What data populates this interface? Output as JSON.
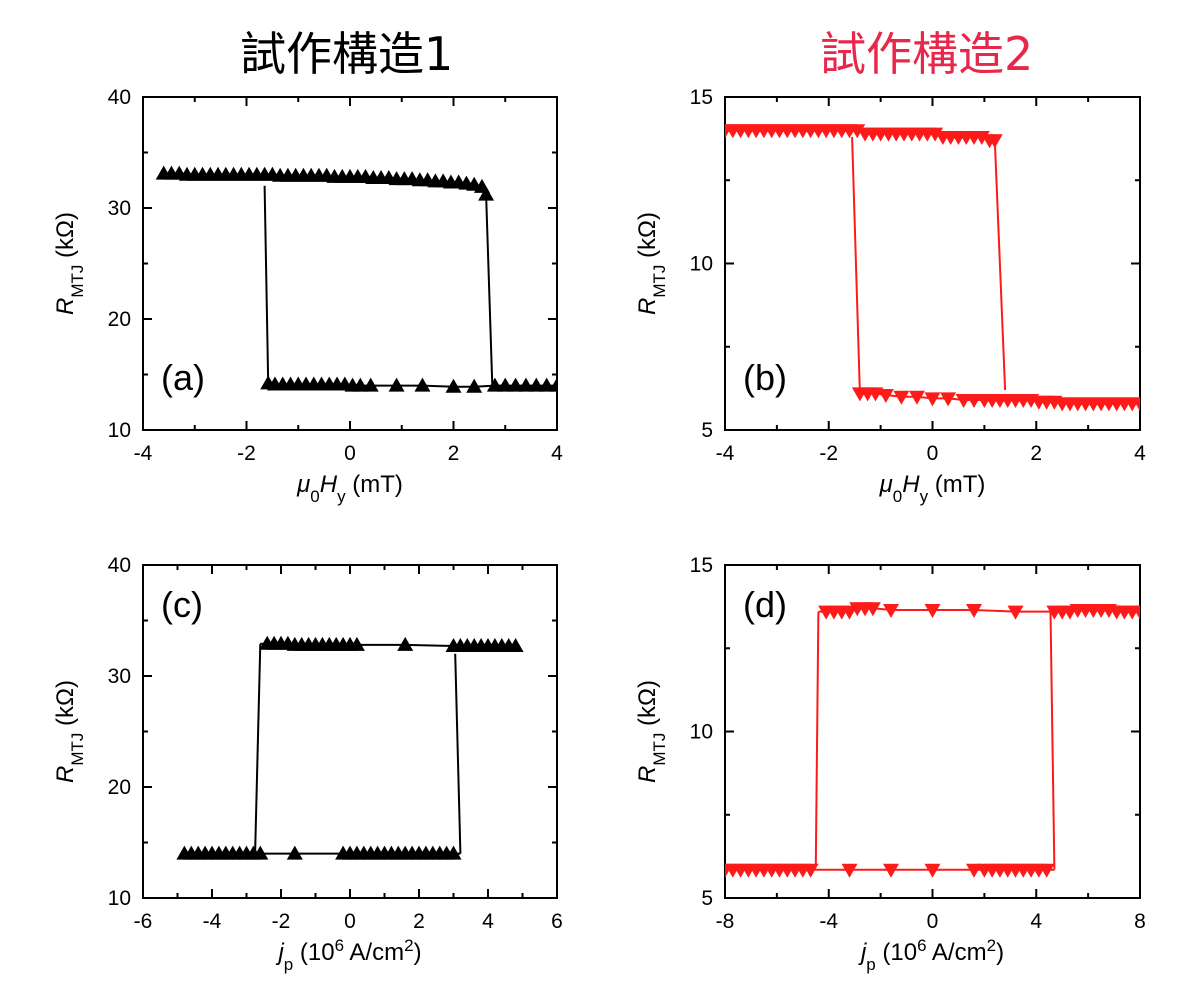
{
  "titles": {
    "left": "試作構造1",
    "right": "試作構造2"
  },
  "colors": {
    "sample1": "#000000",
    "sample2": "#ff1a1a",
    "title2": "#e8284a"
  },
  "chart_data": [
    {
      "id": "a",
      "type": "line",
      "panel_label": "(a)",
      "xlabel": "μ0Hy (mT)",
      "ylabel": "RMTJ (kΩ)",
      "xlim": [
        -4,
        4
      ],
      "ylim": [
        10,
        40
      ],
      "xticks": [
        -4,
        -2,
        0,
        2,
        4
      ],
      "yticks": [
        10,
        20,
        30,
        40
      ],
      "marker": "triangle-up",
      "color": "#000000",
      "series": [
        {
          "x": [
            -3.6,
            -3.45,
            -3.3,
            -3.15,
            -3.0,
            -2.85,
            -2.7,
            -2.55,
            -2.4,
            -2.25,
            -2.1,
            -1.95,
            -1.8,
            -1.65,
            -1.5,
            -1.35,
            -1.2,
            -1.05,
            -0.9,
            -0.75,
            -0.6,
            -0.45,
            -0.3,
            -0.15,
            0.0,
            0.15,
            0.3,
            0.45,
            0.6,
            0.75,
            0.9,
            1.05,
            1.2,
            1.35,
            1.5,
            1.65,
            1.8,
            1.95,
            2.1,
            2.25,
            2.4,
            2.55,
            2.63,
            2.75
          ],
          "y": [
            33.1,
            33.1,
            33.1,
            33.0,
            33.0,
            33.0,
            33.0,
            33.0,
            33.0,
            33.0,
            33.0,
            33.0,
            33.0,
            33.0,
            33.0,
            32.9,
            32.9,
            32.9,
            32.9,
            32.9,
            32.9,
            32.9,
            32.8,
            32.8,
            32.8,
            32.8,
            32.8,
            32.7,
            32.7,
            32.7,
            32.6,
            32.6,
            32.6,
            32.5,
            32.5,
            32.4,
            32.4,
            32.3,
            32.3,
            32.2,
            32.1,
            31.9,
            31.2,
            14.0
          ]
        },
        {
          "x": [
            4.0,
            3.8,
            3.6,
            3.4,
            3.2,
            3.0,
            2.8,
            2.4,
            2.0,
            1.4,
            0.9,
            0.4,
            0.2,
            0.05,
            -0.1,
            -0.25,
            -0.4,
            -0.55,
            -0.7,
            -0.85,
            -1.0,
            -1.15,
            -1.3,
            -1.45,
            -1.58,
            -1.65
          ],
          "y": [
            14.0,
            14.0,
            14.0,
            14.0,
            14.0,
            14.0,
            14.0,
            13.9,
            13.9,
            14.0,
            14.0,
            14.0,
            14.0,
            14.0,
            14.1,
            14.1,
            14.1,
            14.1,
            14.1,
            14.1,
            14.1,
            14.1,
            14.1,
            14.1,
            14.2,
            32.0
          ]
        }
      ]
    },
    {
      "id": "b",
      "type": "line",
      "panel_label": "(b)",
      "xlabel": "μ0Hy (mT)",
      "ylabel": "RMTJ (kΩ)",
      "xlim": [
        -4,
        4
      ],
      "ylim": [
        5,
        15
      ],
      "xticks": [
        -4,
        -2,
        0,
        2,
        4
      ],
      "yticks": [
        5,
        10,
        15
      ],
      "marker": "triangle-down",
      "color": "#ff1a1a",
      "series": [
        {
          "x": [
            -4.0,
            -3.85,
            -3.7,
            -3.55,
            -3.4,
            -3.25,
            -3.1,
            -2.95,
            -2.8,
            -2.65,
            -2.5,
            -2.35,
            -2.2,
            -2.05,
            -1.9,
            -1.75,
            -1.6,
            -1.45,
            -1.3,
            -1.15,
            -1.0,
            -0.85,
            -0.7,
            -0.55,
            -0.4,
            -0.25,
            -0.1,
            0.05,
            0.2,
            0.35,
            0.5,
            0.65,
            0.8,
            0.95,
            1.1,
            1.2,
            1.4
          ],
          "y": [
            14.0,
            14.0,
            14.0,
            14.0,
            14.0,
            14.0,
            14.0,
            14.0,
            14.0,
            14.0,
            14.0,
            14.0,
            14.0,
            14.0,
            14.0,
            14.0,
            14.0,
            14.0,
            13.9,
            13.9,
            13.9,
            13.9,
            13.9,
            13.9,
            13.9,
            13.9,
            13.9,
            13.9,
            13.8,
            13.8,
            13.8,
            13.8,
            13.8,
            13.8,
            13.7,
            13.7,
            6.2
          ]
        },
        {
          "x": [
            4.0,
            3.85,
            3.7,
            3.55,
            3.4,
            3.25,
            3.1,
            2.95,
            2.8,
            2.65,
            2.5,
            2.35,
            2.2,
            2.05,
            1.9,
            1.75,
            1.6,
            1.45,
            1.3,
            1.15,
            1.0,
            0.8,
            0.6,
            0.3,
            0.0,
            -0.3,
            -0.6,
            -0.9,
            -1.1,
            -1.25,
            -1.4,
            -1.55
          ],
          "y": [
            5.8,
            5.8,
            5.8,
            5.8,
            5.8,
            5.8,
            5.8,
            5.8,
            5.8,
            5.8,
            5.8,
            5.85,
            5.85,
            5.85,
            5.9,
            5.9,
            5.9,
            5.9,
            5.9,
            5.9,
            5.9,
            5.9,
            5.9,
            5.95,
            5.95,
            6.0,
            6.0,
            6.05,
            6.1,
            6.1,
            6.1,
            13.8
          ]
        }
      ]
    },
    {
      "id": "c",
      "type": "line",
      "panel_label": "(c)",
      "xlabel": "jp (10^6 A/cm^2)",
      "ylabel": "RMTJ (kΩ)",
      "xlim": [
        -6,
        6
      ],
      "ylim": [
        10,
        40
      ],
      "xticks": [
        -6,
        -4,
        -2,
        0,
        2,
        4,
        6
      ],
      "yticks": [
        10,
        20,
        30,
        40
      ],
      "marker": "triangle-up",
      "color": "#000000",
      "series": [
        {
          "x": [
            -4.8,
            -4.6,
            -4.4,
            -4.2,
            -4.0,
            -3.8,
            -3.6,
            -3.4,
            -3.2,
            -3.0,
            -2.8,
            -2.6,
            -1.6,
            -0.2,
            0.0,
            0.2,
            0.4,
            0.6,
            0.8,
            1.0,
            1.2,
            1.4,
            1.6,
            1.8,
            2.0,
            2.2,
            2.4,
            2.6,
            2.8,
            3.0,
            3.2
          ],
          "y": [
            14.0,
            14.0,
            14.0,
            14.0,
            14.0,
            14.0,
            14.0,
            14.0,
            14.0,
            14.0,
            14.0,
            14.0,
            14.0,
            14.0,
            14.0,
            14.0,
            14.0,
            14.0,
            14.0,
            14.0,
            14.0,
            14.0,
            14.0,
            14.0,
            14.0,
            14.0,
            14.0,
            14.0,
            14.0,
            14.0,
            14.0
          ]
        },
        {
          "x": [
            3.2,
            3.05
          ],
          "y": [
            14.0,
            32.0
          ]
        },
        {
          "x": [
            4.8,
            4.6,
            4.4,
            4.2,
            4.0,
            3.8,
            3.6,
            3.4,
            3.2,
            3.0,
            1.6,
            0.2,
            0.0,
            -0.2,
            -0.4,
            -0.6,
            -0.8,
            -1.0,
            -1.2,
            -1.4,
            -1.6,
            -1.8,
            -2.0,
            -2.2,
            -2.4,
            -2.6
          ],
          "y": [
            32.7,
            32.7,
            32.7,
            32.7,
            32.7,
            32.7,
            32.7,
            32.7,
            32.7,
            32.7,
            32.8,
            32.8,
            32.8,
            32.8,
            32.8,
            32.8,
            32.8,
            32.8,
            32.8,
            32.8,
            32.8,
            32.9,
            32.9,
            32.9,
            32.9,
            32.9
          ]
        },
        {
          "x": [
            -2.6,
            -2.75
          ],
          "y": [
            32.9,
            14.0
          ]
        }
      ]
    },
    {
      "id": "d",
      "type": "line",
      "panel_label": "(d)",
      "xlabel": "jp (10^6 A/cm^2)",
      "ylabel": "RMTJ (kΩ)",
      "xlim": [
        -8,
        8
      ],
      "ylim": [
        5,
        15
      ],
      "xticks": [
        -8,
        -4,
        0,
        4,
        8
      ],
      "yticks": [
        5,
        10,
        15
      ],
      "marker": "triangle-down",
      "color": "#ff1a1a",
      "series": [
        {
          "x": [
            -8.0,
            -7.7,
            -7.4,
            -7.1,
            -6.8,
            -6.5,
            -6.2,
            -5.9,
            -5.6,
            -5.3,
            -5.0,
            -4.7,
            -3.2,
            -1.6,
            0.0,
            1.6,
            2.0,
            2.3,
            2.6,
            2.9,
            3.2,
            3.5,
            3.8,
            4.1,
            4.4,
            4.7
          ],
          "y": [
            5.85,
            5.85,
            5.85,
            5.85,
            5.85,
            5.85,
            5.85,
            5.85,
            5.85,
            5.85,
            5.85,
            5.85,
            5.85,
            5.85,
            5.85,
            5.85,
            5.85,
            5.85,
            5.85,
            5.85,
            5.85,
            5.85,
            5.85,
            5.85,
            5.85,
            5.85
          ]
        },
        {
          "x": [
            4.7,
            4.55
          ],
          "y": [
            5.85,
            13.6
          ]
        },
        {
          "x": [
            8.0,
            7.7,
            7.4,
            7.1,
            6.8,
            6.5,
            6.2,
            5.9,
            5.6,
            5.3,
            5.0,
            4.7,
            3.2,
            1.6,
            0.0,
            -1.6,
            -2.3,
            -2.6,
            -2.9,
            -3.2,
            -3.5,
            -3.8,
            -4.1,
            -4.4
          ],
          "y": [
            13.6,
            13.6,
            13.6,
            13.6,
            13.65,
            13.65,
            13.65,
            13.65,
            13.65,
            13.6,
            13.6,
            13.6,
            13.6,
            13.65,
            13.65,
            13.65,
            13.7,
            13.7,
            13.7,
            13.6,
            13.6,
            13.6,
            13.6,
            13.6
          ]
        },
        {
          "x": [
            -4.4,
            -4.5
          ],
          "y": [
            13.6,
            6.0
          ]
        }
      ]
    }
  ]
}
